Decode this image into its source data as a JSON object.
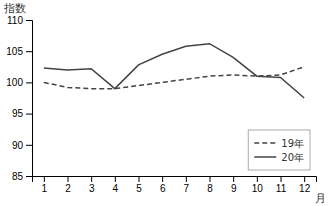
{
  "chart_data": {
    "type": "line",
    "x": [
      1,
      2,
      3,
      4,
      5,
      6,
      7,
      8,
      9,
      10,
      11,
      12
    ],
    "series": [
      {
        "name": "19年",
        "color": "#444444",
        "line_style": "dashed",
        "values": [
          100.0,
          99.2,
          99.0,
          99.0,
          99.5,
          100.0,
          100.5,
          101.0,
          101.2,
          101.0,
          101.2,
          102.5
        ]
      },
      {
        "name": "20年",
        "color": "#444444",
        "line_style": "solid",
        "values": [
          102.3,
          102.0,
          102.2,
          99.0,
          102.8,
          104.5,
          105.8,
          106.2,
          104.0,
          101.0,
          100.8,
          97.5
        ]
      }
    ],
    "xlabel": "月",
    "ylabel": "指数",
    "xlim": [
      0.5,
      12.5
    ],
    "xticks": [
      1,
      2,
      3,
      4,
      5,
      6,
      7,
      8,
      9,
      10,
      11,
      12
    ],
    "ylim": [
      85,
      110
    ],
    "yticks": [
      85,
      90,
      95,
      100,
      105,
      110
    ],
    "legend": "lower right",
    "grid": false
  }
}
